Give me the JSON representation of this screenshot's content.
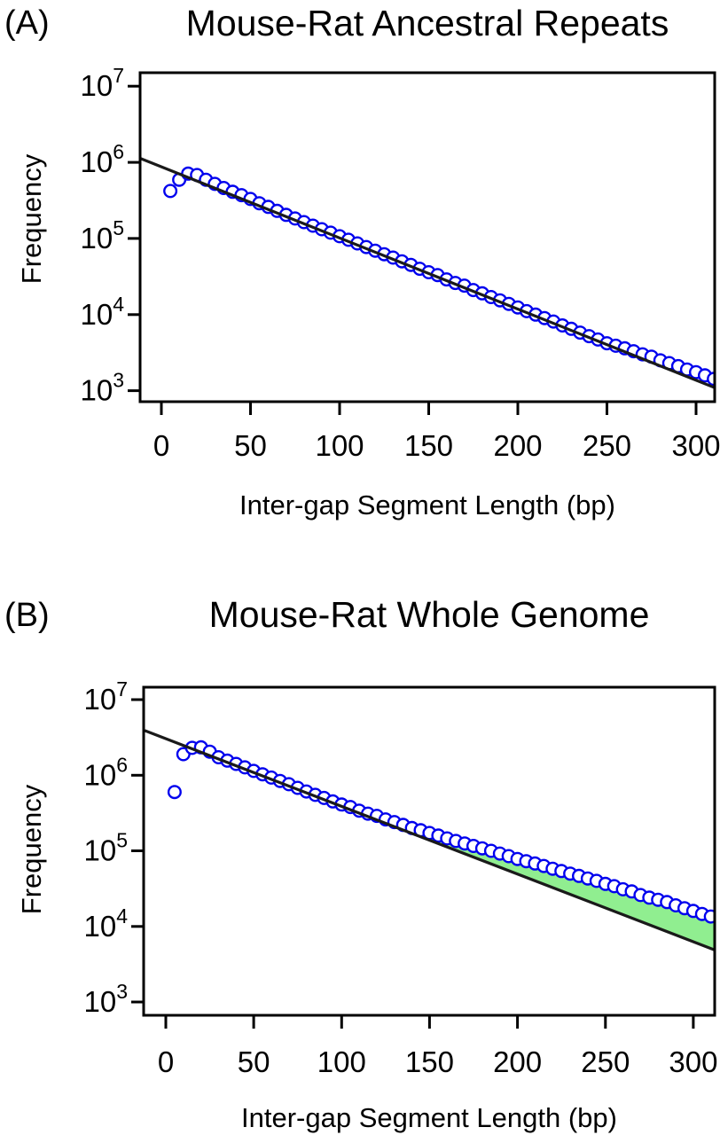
{
  "figure_type": "two-panel log-scale scatter figure",
  "colors": {
    "background": "#FFFFFF",
    "marker": "#0000EE",
    "fit_line": "#1A1A1A",
    "shaded": "#90EE90",
    "frame": "#000000",
    "text": "#000000"
  },
  "chart_data": [
    {
      "type": "scatter",
      "panel_label": "(A)",
      "title": "Mouse-Rat Ancestral Repeats",
      "xlabel": "Inter-gap Segment Length (bp)",
      "ylabel": "Frequency",
      "x_scale": "linear",
      "y_scale": "log10",
      "xlim": [
        -12,
        312
      ],
      "ylim_log10": [
        2.87,
        7.18
      ],
      "x_ticks": [
        0,
        50,
        100,
        150,
        200,
        250,
        300
      ],
      "y_tick_base": "10",
      "y_tick_exponents": [
        3,
        4,
        5,
        6,
        7
      ],
      "marker": {
        "shape": "open-circle",
        "color": "#0000EE"
      },
      "fit_line": {
        "x": [
          -12,
          312
        ],
        "y": [
          1130000,
          1060
        ]
      },
      "shaded_region": null,
      "points": {
        "x": [
          5,
          10,
          15,
          20,
          25,
          30,
          35,
          40,
          45,
          50,
          55,
          60,
          65,
          70,
          75,
          80,
          85,
          90,
          95,
          100,
          105,
          110,
          115,
          120,
          125,
          130,
          135,
          140,
          145,
          150,
          155,
          160,
          165,
          170,
          175,
          180,
          185,
          190,
          195,
          200,
          205,
          210,
          215,
          220,
          225,
          230,
          235,
          240,
          245,
          250,
          255,
          260,
          265,
          270,
          275,
          280,
          285,
          290,
          295,
          300,
          305,
          310
        ],
        "y": [
          420000,
          590000,
          710000,
          680000,
          590000,
          520000,
          460000,
          410000,
          370000,
          330000,
          290000,
          260000,
          230000,
          204000,
          183000,
          164000,
          147000,
          132000,
          119000,
          107000,
          96000,
          86000,
          77000,
          69000,
          62000,
          56000,
          50000,
          45000,
          40000,
          36000,
          33000,
          29000,
          26000,
          24000,
          21000,
          19000,
          17000,
          15400,
          13800,
          12400,
          11100,
          10000,
          9000,
          8100,
          7200,
          6500,
          5800,
          5200,
          4700,
          4200,
          3900,
          3600,
          3300,
          3000,
          2800,
          2500,
          2300,
          2100,
          1900,
          1750,
          1590,
          1430
        ]
      }
    },
    {
      "type": "scatter",
      "panel_label": "(B)",
      "title": "Mouse-Rat Whole Genome",
      "xlabel": "Inter-gap Segment Length (bp)",
      "ylabel": "Frequency",
      "x_scale": "linear",
      "y_scale": "log10",
      "xlim": [
        -12,
        312
      ],
      "ylim_log10": [
        2.83,
        7.16
      ],
      "x_ticks": [
        0,
        50,
        100,
        150,
        200,
        250,
        300
      ],
      "y_tick_base": "10",
      "y_tick_exponents": [
        3,
        4,
        5,
        6,
        7
      ],
      "marker": {
        "shape": "open-circle",
        "color": "#0000EE"
      },
      "fit_line": {
        "x": [
          -12,
          312
        ],
        "y": [
          3900000,
          4900
        ]
      },
      "shaded_region": {
        "from_x": 145,
        "color": "#90EE90",
        "meaning": "excess of observed counts above exponential fit"
      },
      "points": {
        "x": [
          5,
          10,
          15,
          20,
          25,
          30,
          35,
          40,
          45,
          50,
          55,
          60,
          65,
          70,
          75,
          80,
          85,
          90,
          95,
          100,
          105,
          110,
          115,
          120,
          125,
          130,
          135,
          140,
          145,
          150,
          155,
          160,
          165,
          170,
          175,
          180,
          185,
          190,
          195,
          200,
          205,
          210,
          215,
          220,
          225,
          230,
          235,
          240,
          245,
          250,
          255,
          260,
          265,
          270,
          275,
          280,
          285,
          290,
          295,
          300,
          305,
          310
        ],
        "y": [
          600000,
          1900000,
          2300000,
          2340000,
          2050000,
          1730000,
          1560000,
          1410000,
          1270000,
          1140000,
          1030000,
          930000,
          840000,
          760000,
          680000,
          610000,
          550000,
          500000,
          450000,
          410000,
          380000,
          340000,
          310000,
          290000,
          260000,
          240000,
          220000,
          200000,
          187000,
          172000,
          159000,
          146000,
          135000,
          125000,
          116000,
          108000,
          100000,
          92000,
          85000,
          78000,
          73000,
          68000,
          63000,
          58000,
          54000,
          50000,
          46500,
          43000,
          40000,
          36500,
          34000,
          31000,
          29000,
          26000,
          24000,
          22500,
          21000,
          19000,
          17400,
          16000,
          14600,
          13500
        ]
      }
    }
  ]
}
